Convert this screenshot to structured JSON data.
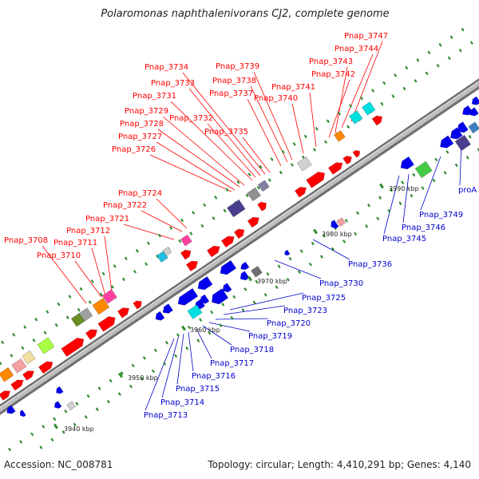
{
  "title": "Polaromonas naphthalenivorans CJ2, complete genome",
  "footer": {
    "accession": "Accession: NC_008781",
    "summary": "Topology: circular; Length: 4,410,291 bp; Genes: 4,140"
  },
  "colors": {
    "forward_label": "#ff0000",
    "reverse_label": "#0000cc",
    "backbone": "#8c8c8c"
  },
  "ticks": [
    "3940 kbp",
    "3950 kbp",
    "3960 kbp",
    "3970 kbp",
    "3980 kbp",
    "3990 kbp"
  ],
  "forward_labels": [
    "Pnap_3708",
    "Pnap_3710",
    "Pnap_3711",
    "Pnap_3712",
    "Pnap_3721",
    "Pnap_3722",
    "Pnap_3724",
    "Pnap_3726",
    "Pnap_3727",
    "Pnap_3728",
    "Pnap_3729",
    "Pnap_3731",
    "Pnap_3732",
    "Pnap_3733",
    "Pnap_3734",
    "Pnap_3735",
    "Pnap_3737",
    "Pnap_3738",
    "Pnap_3739",
    "Pnap_3740",
    "Pnap_3741",
    "Pnap_3742",
    "Pnap_3743",
    "Pnap_3744",
    "Pnap_3747"
  ],
  "reverse_labels": [
    "Pnap_3713",
    "Pnap_3714",
    "Pnap_3715",
    "Pnap_3716",
    "Pnap_3717",
    "Pnap_3718",
    "Pnap_3719",
    "Pnap_3720",
    "Pnap_3723",
    "Pnap_3725",
    "Pnap_3730",
    "Pnap_3736",
    "Pnap_3745",
    "Pnap_3746",
    "Pnap_3749",
    "proA"
  ]
}
